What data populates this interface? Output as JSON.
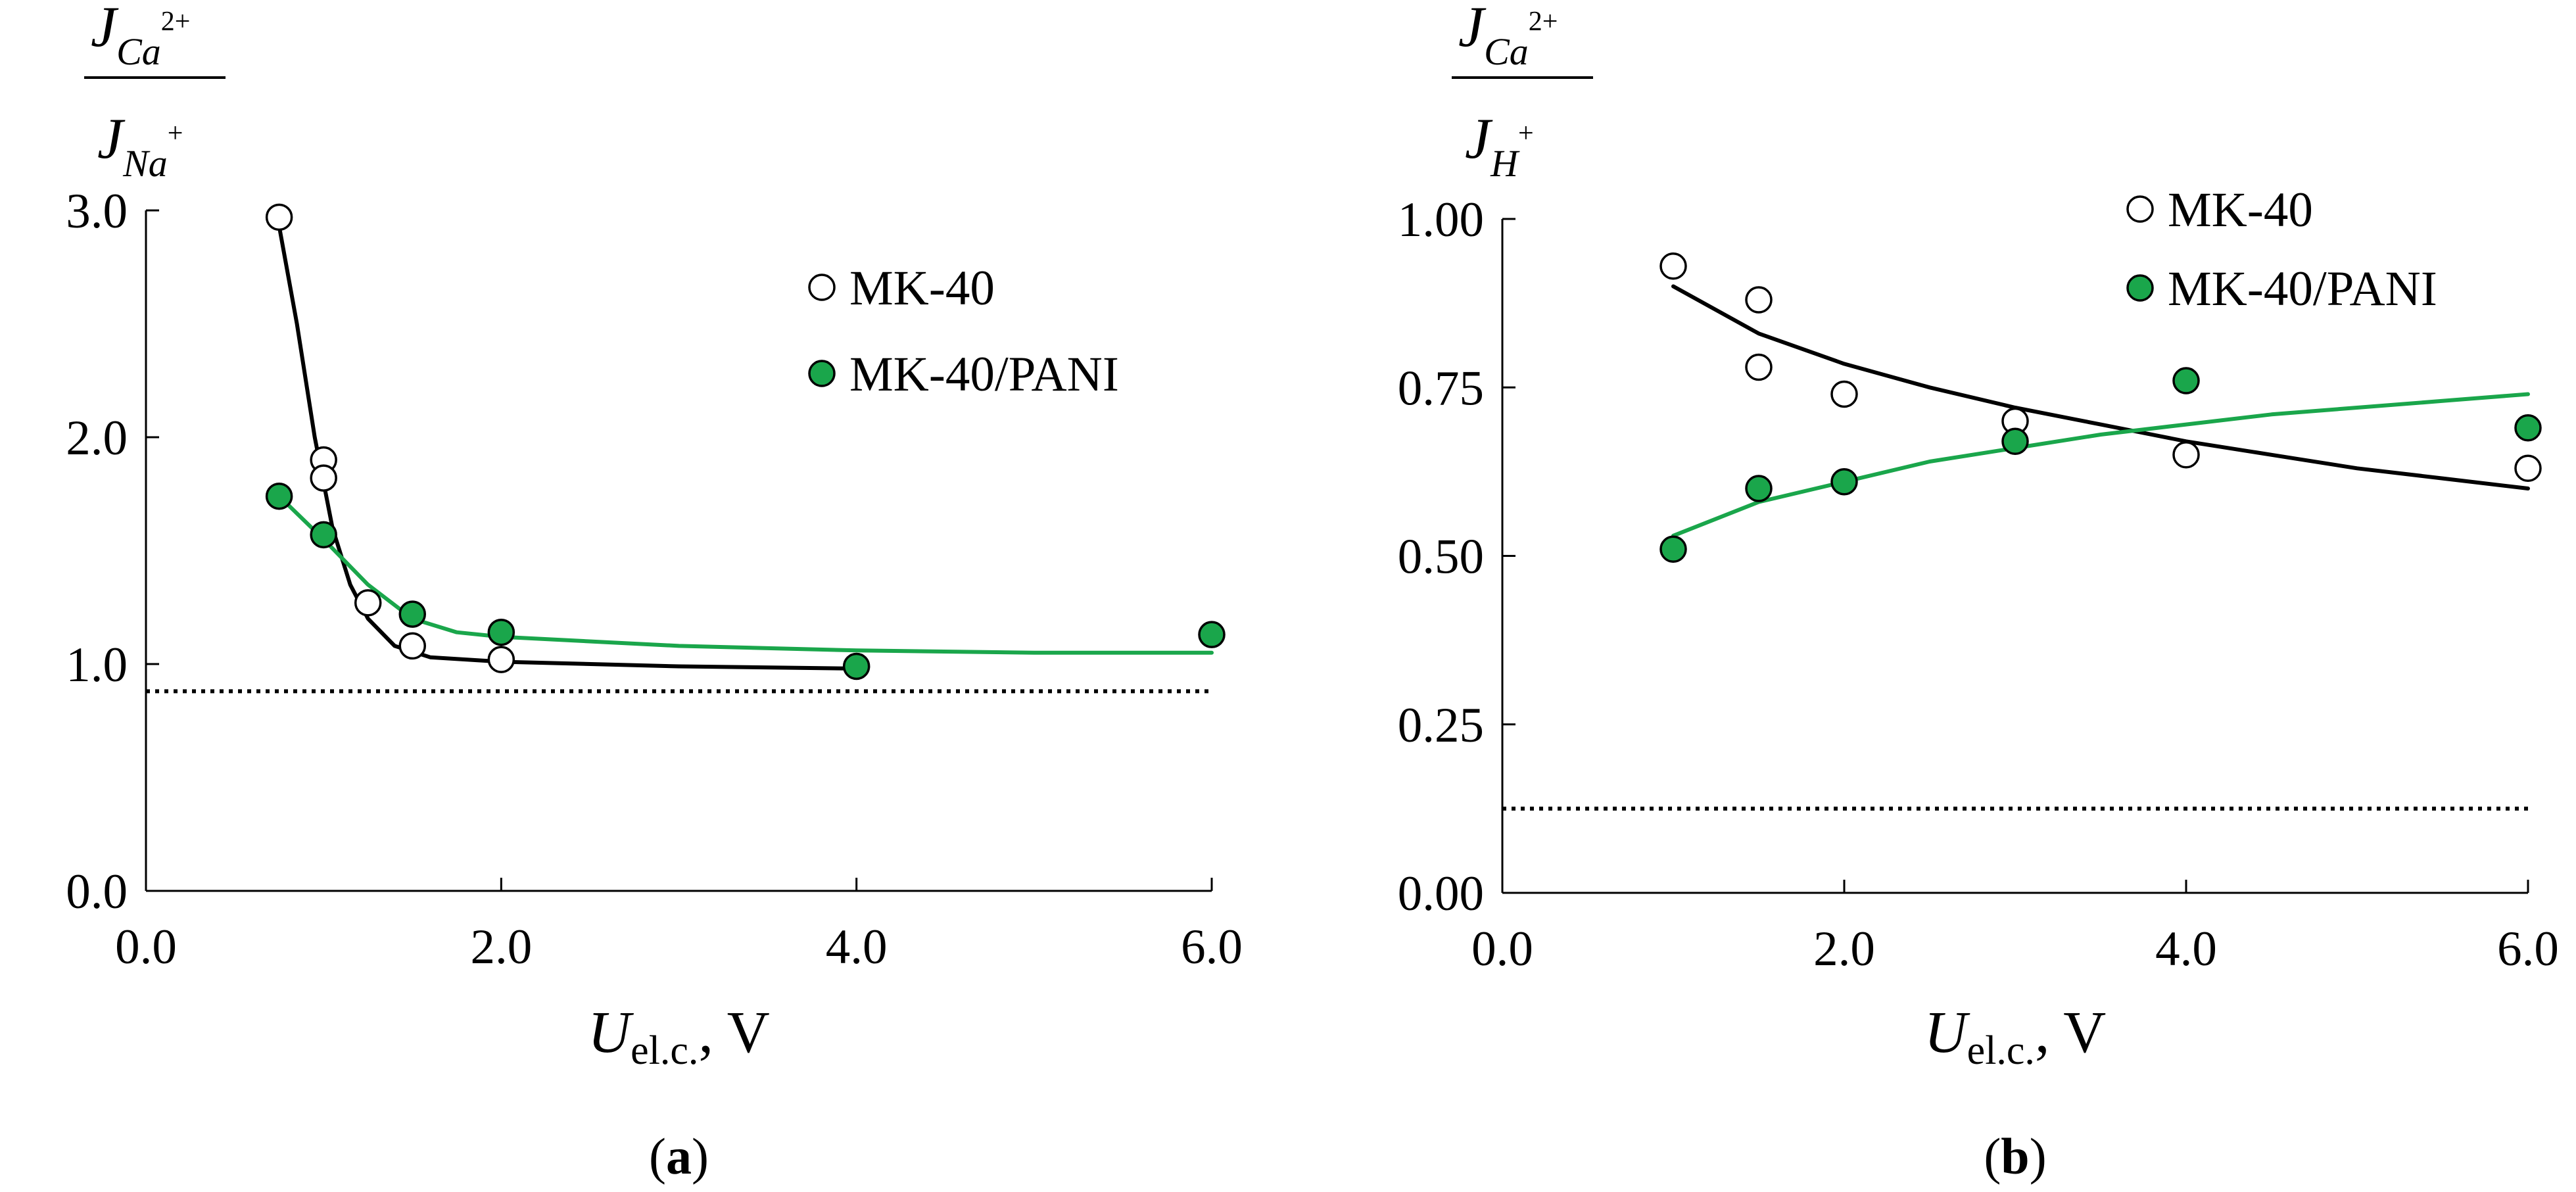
{
  "colors": {
    "green": "#1aa64b",
    "black": "#000000",
    "open_fill": "#ffffff"
  },
  "chart_data": [
    {
      "type": "scatter",
      "panel_label": "a",
      "xlabel": {
        "main": "U",
        "sub": "el.c.",
        "unit": ", V"
      },
      "ylabel": {
        "num_main": "J",
        "num_sub": "Ca",
        "num_sup": "2+",
        "den_main": "J",
        "den_sub": "Na",
        "den_sup": "+"
      },
      "xlim": [
        0,
        6
      ],
      "ylim": [
        0,
        3
      ],
      "xticks": [
        0,
        2,
        4,
        6
      ],
      "xtick_labels": [
        "0.0",
        "2.0",
        "4.0",
        "6.0"
      ],
      "yticks": [
        0,
        1,
        2,
        3
      ],
      "ytick_labels": [
        "0.0",
        "1.0",
        "2.0",
        "3.0"
      ],
      "reference_line": 0.88,
      "series": [
        {
          "name": "MK-40",
          "marker": "open",
          "points": [
            [
              0.75,
              2.97
            ],
            [
              1.0,
              1.9
            ],
            [
              1.0,
              1.82
            ],
            [
              1.25,
              1.27
            ],
            [
              1.5,
              1.08
            ],
            [
              2.0,
              1.02
            ]
          ],
          "fit": [
            [
              0.75,
              2.93
            ],
            [
              0.85,
              2.5
            ],
            [
              0.95,
              2.0
            ],
            [
              1.05,
              1.6
            ],
            [
              1.15,
              1.35
            ],
            [
              1.25,
              1.2
            ],
            [
              1.4,
              1.08
            ],
            [
              1.6,
              1.03
            ],
            [
              2.0,
              1.01
            ],
            [
              3.0,
              0.99
            ],
            [
              4.0,
              0.98
            ]
          ]
        },
        {
          "name": "MK-40/PANI",
          "marker": "filled",
          "points": [
            [
              0.75,
              1.74
            ],
            [
              1.0,
              1.57
            ],
            [
              1.5,
              1.22
            ],
            [
              2.0,
              1.14
            ],
            [
              4.0,
              0.99
            ],
            [
              6.0,
              1.13
            ]
          ],
          "fit": [
            [
              0.75,
              1.74
            ],
            [
              1.0,
              1.55
            ],
            [
              1.25,
              1.35
            ],
            [
              1.5,
              1.2
            ],
            [
              1.75,
              1.14
            ],
            [
              2.0,
              1.12
            ],
            [
              3.0,
              1.08
            ],
            [
              4.0,
              1.06
            ],
            [
              5.0,
              1.05
            ],
            [
              6.0,
              1.05
            ]
          ]
        }
      ],
      "legend": [
        "MK-40",
        "MK-40/PANI"
      ]
    },
    {
      "type": "scatter",
      "panel_label": "b",
      "xlabel": {
        "main": "U",
        "sub": "el.c.",
        "unit": ", V"
      },
      "ylabel": {
        "num_main": "J",
        "num_sub": "Ca",
        "num_sup": "2+",
        "den_main": "J",
        "den_sub": "H",
        "den_sup": "+"
      },
      "xlim": [
        0,
        6
      ],
      "ylim": [
        0,
        1
      ],
      "xticks": [
        0,
        2,
        4,
        6
      ],
      "xtick_labels": [
        "0.0",
        "2.0",
        "4.0",
        "6.0"
      ],
      "yticks": [
        0,
        0.25,
        0.5,
        0.75,
        1
      ],
      "ytick_labels": [
        "0.00",
        "0.25",
        "0.50",
        "0.75",
        "1.00"
      ],
      "reference_line": 0.125,
      "series": [
        {
          "name": "MK-40",
          "marker": "open",
          "points": [
            [
              1.0,
              0.93
            ],
            [
              1.5,
              0.88
            ],
            [
              1.5,
              0.78
            ],
            [
              2.0,
              0.74
            ],
            [
              3.0,
              0.7
            ],
            [
              4.0,
              0.65
            ],
            [
              6.0,
              0.63
            ]
          ],
          "fit": [
            [
              1.0,
              0.9
            ],
            [
              1.5,
              0.83
            ],
            [
              2.0,
              0.785
            ],
            [
              2.5,
              0.75
            ],
            [
              3.0,
              0.72
            ],
            [
              3.5,
              0.695
            ],
            [
              4.0,
              0.67
            ],
            [
              4.5,
              0.65
            ],
            [
              5.0,
              0.63
            ],
            [
              5.5,
              0.615
            ],
            [
              6.0,
              0.6
            ]
          ]
        },
        {
          "name": "MK-40/PANI",
          "marker": "filled",
          "points": [
            [
              1.0,
              0.51
            ],
            [
              1.5,
              0.6
            ],
            [
              2.0,
              0.61
            ],
            [
              3.0,
              0.67
            ],
            [
              4.0,
              0.76
            ],
            [
              6.0,
              0.69
            ]
          ],
          "fit": [
            [
              1.0,
              0.53
            ],
            [
              1.5,
              0.58
            ],
            [
              2.0,
              0.61
            ],
            [
              2.5,
              0.64
            ],
            [
              3.0,
              0.66
            ],
            [
              3.5,
              0.68
            ],
            [
              4.0,
              0.695
            ],
            [
              4.5,
              0.71
            ],
            [
              5.0,
              0.72
            ],
            [
              5.5,
              0.73
            ],
            [
              6.0,
              0.74
            ]
          ]
        }
      ],
      "legend": [
        "MK-40",
        "MK-40/PANI"
      ]
    }
  ]
}
